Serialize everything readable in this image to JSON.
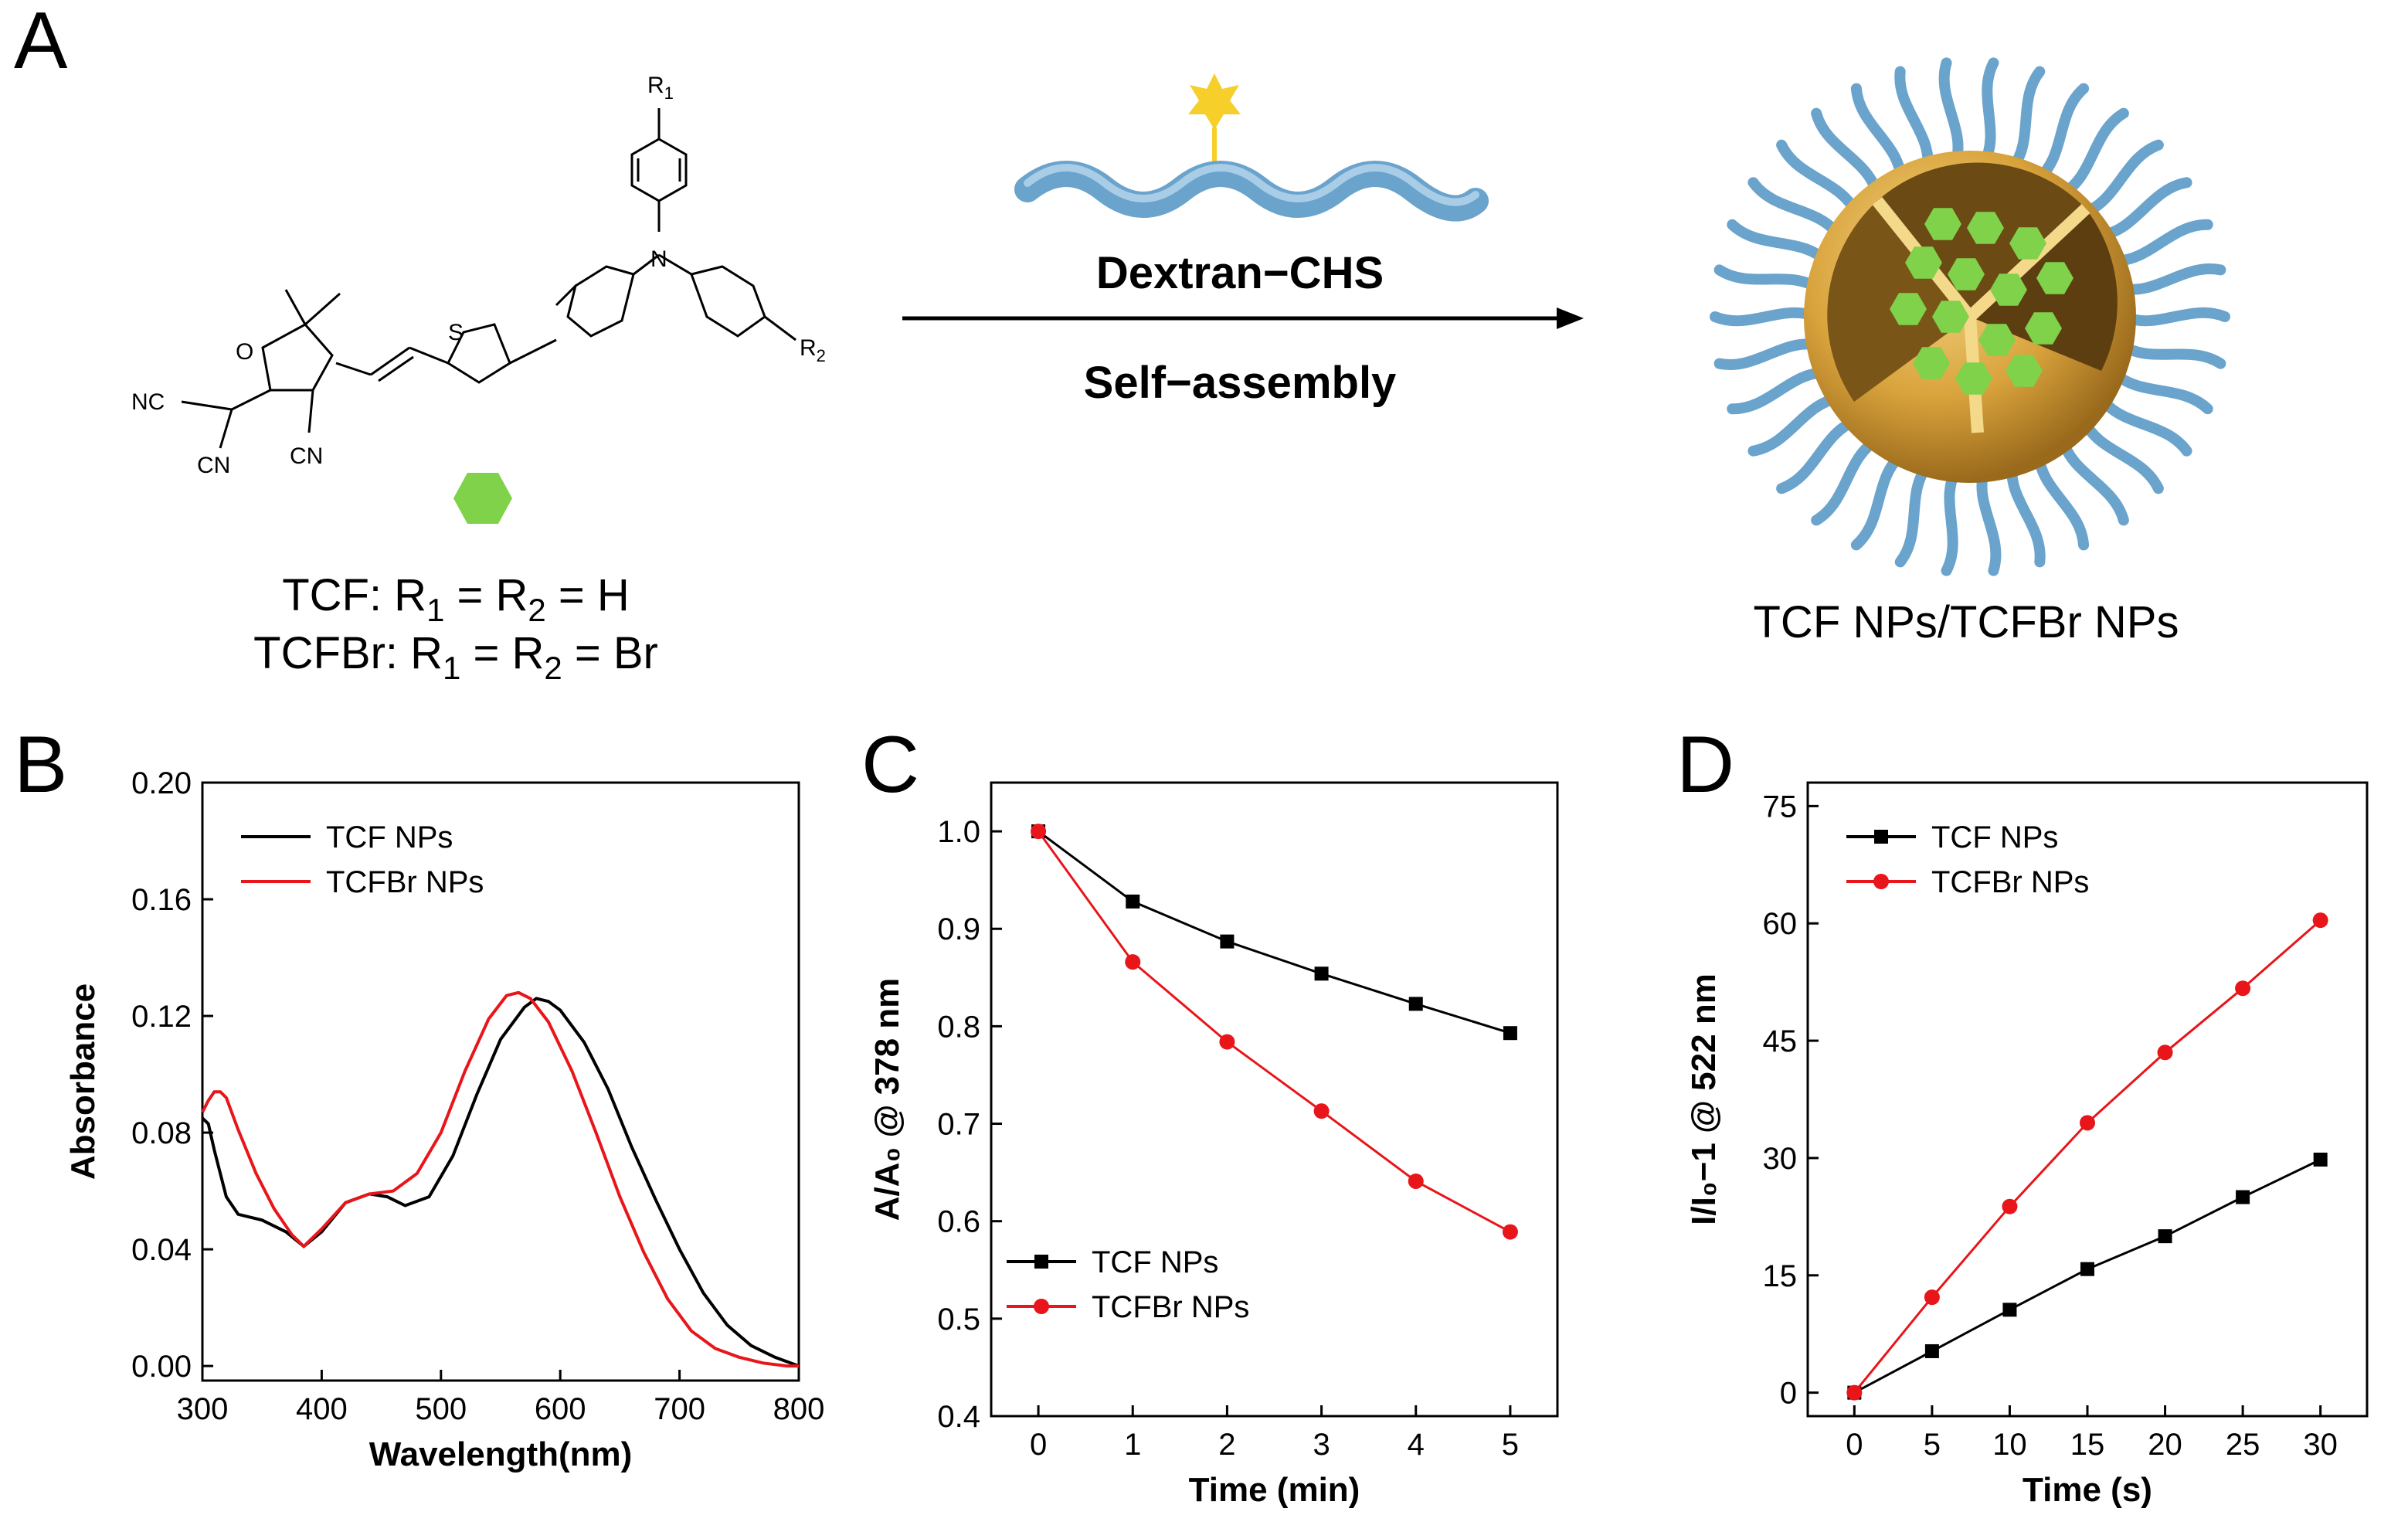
{
  "panels": {
    "A": "A",
    "B": "B",
    "C": "C",
    "D": "D"
  },
  "scheme": {
    "labels": {
      "r1": "R",
      "r1_sub": "1",
      "r2": "R",
      "r2_sub": "2",
      "s": "S",
      "n": "N",
      "o": "O",
      "nc": "NC",
      "cn1": "CN",
      "cn2": "CN"
    },
    "tcf_line": [
      "TCF: R",
      "1",
      " = R",
      "2",
      " = H"
    ],
    "tcfbr_line": [
      "TCFBr: R",
      "1",
      " = R",
      "2",
      " = Br"
    ],
    "arrow_top": "Dextran−CHS",
    "arrow_bottom": "Self−assembly",
    "np_caption": "TCF NPs/TCFBr NPs",
    "colors": {
      "polymer": "#6aa3cc",
      "star": "#f6cf2a",
      "hexagon": "#7fd24a",
      "shell": "#d9a33c"
    }
  },
  "chart_data": [
    {
      "panel": "B",
      "type": "line",
      "title": "",
      "xlabel": "Wavelength(nm)",
      "ylabel": "Absorbance",
      "xlim": [
        300,
        800
      ],
      "ylim": [
        -0.005,
        0.2
      ],
      "xticks": [
        300,
        400,
        500,
        600,
        700,
        800
      ],
      "yticks": [
        0.0,
        0.04,
        0.08,
        0.12,
        0.16,
        0.2
      ],
      "ytick_labels": [
        "0.00",
        "0.04",
        "0.08",
        "0.12",
        "0.16",
        "0.20"
      ],
      "legend_position": "top-left",
      "series": [
        {
          "name": "TCF NPs",
          "color": "#000000",
          "x": [
            300,
            305,
            310,
            320,
            330,
            350,
            370,
            385,
            400,
            420,
            440,
            455,
            470,
            490,
            510,
            530,
            550,
            570,
            580,
            590,
            600,
            620,
            640,
            660,
            680,
            700,
            720,
            740,
            760,
            780,
            800
          ],
          "y": [
            0.085,
            0.083,
            0.074,
            0.058,
            0.052,
            0.05,
            0.046,
            0.041,
            0.046,
            0.056,
            0.059,
            0.058,
            0.055,
            0.058,
            0.072,
            0.093,
            0.112,
            0.123,
            0.126,
            0.125,
            0.122,
            0.111,
            0.095,
            0.075,
            0.057,
            0.04,
            0.025,
            0.014,
            0.007,
            0.003,
            0.0
          ]
        },
        {
          "name": "TCFBr NPs",
          "color": "#e8151a",
          "x": [
            300,
            305,
            310,
            315,
            320,
            330,
            345,
            360,
            375,
            385,
            400,
            420,
            440,
            460,
            480,
            500,
            520,
            540,
            555,
            565,
            575,
            590,
            610,
            630,
            650,
            670,
            690,
            710,
            730,
            750,
            770,
            790,
            800
          ],
          "y": [
            0.087,
            0.091,
            0.094,
            0.094,
            0.092,
            0.081,
            0.066,
            0.054,
            0.045,
            0.041,
            0.047,
            0.056,
            0.059,
            0.06,
            0.066,
            0.08,
            0.101,
            0.119,
            0.127,
            0.128,
            0.126,
            0.118,
            0.101,
            0.08,
            0.058,
            0.039,
            0.023,
            0.012,
            0.006,
            0.003,
            0.001,
            0.0,
            0.0
          ]
        }
      ]
    },
    {
      "panel": "C",
      "type": "line",
      "title": "",
      "xlabel": "Time (min)",
      "ylabel": "A/A₀ @ 378 nm",
      "xlim": [
        -0.5,
        5.5
      ],
      "ylim": [
        0.4,
        1.05
      ],
      "xticks": [
        0,
        1,
        2,
        3,
        4,
        5
      ],
      "yticks": [
        0.4,
        0.5,
        0.6,
        0.7,
        0.8,
        0.9,
        1.0
      ],
      "ytick_labels": [
        "0.4",
        "0.5",
        "0.6",
        "0.7",
        "0.8",
        "0.9",
        "1.0"
      ],
      "legend_position": "bottom-left",
      "series": [
        {
          "name": "TCF NPs",
          "color": "#000000",
          "marker": "square",
          "x": [
            0,
            1,
            2,
            3,
            4,
            5
          ],
          "y": [
            1.0,
            0.928,
            0.887,
            0.854,
            0.823,
            0.793
          ]
        },
        {
          "name": "TCFBr NPs",
          "color": "#e8151a",
          "marker": "circle",
          "x": [
            0,
            1,
            2,
            3,
            4,
            5
          ],
          "y": [
            1.0,
            0.866,
            0.784,
            0.713,
            0.641,
            0.589
          ]
        }
      ]
    },
    {
      "panel": "D",
      "type": "line",
      "title": "",
      "xlabel": "Time (s)",
      "ylabel": "I/I₀−1 @ 522 nm",
      "xlim": [
        -3,
        33
      ],
      "ylim": [
        -3,
        78
      ],
      "xticks": [
        0,
        5,
        10,
        15,
        20,
        25,
        30
      ],
      "yticks": [
        0,
        15,
        30,
        45,
        60,
        75
      ],
      "ytick_labels": [
        "0",
        "15",
        "30",
        "45",
        "60",
        "75"
      ],
      "legend_position": "top-left",
      "series": [
        {
          "name": "TCF NPs",
          "color": "#000000",
          "marker": "square",
          "x": [
            0,
            5,
            10,
            15,
            20,
            25,
            30
          ],
          "y": [
            0,
            5.3,
            10.6,
            15.8,
            20.0,
            25.0,
            29.8
          ]
        },
        {
          "name": "TCFBr NPs",
          "color": "#e8151a",
          "marker": "circle",
          "x": [
            0,
            5,
            10,
            15,
            20,
            25,
            30
          ],
          "y": [
            0,
            12.2,
            23.8,
            34.5,
            43.5,
            51.7,
            60.4
          ]
        }
      ]
    }
  ]
}
